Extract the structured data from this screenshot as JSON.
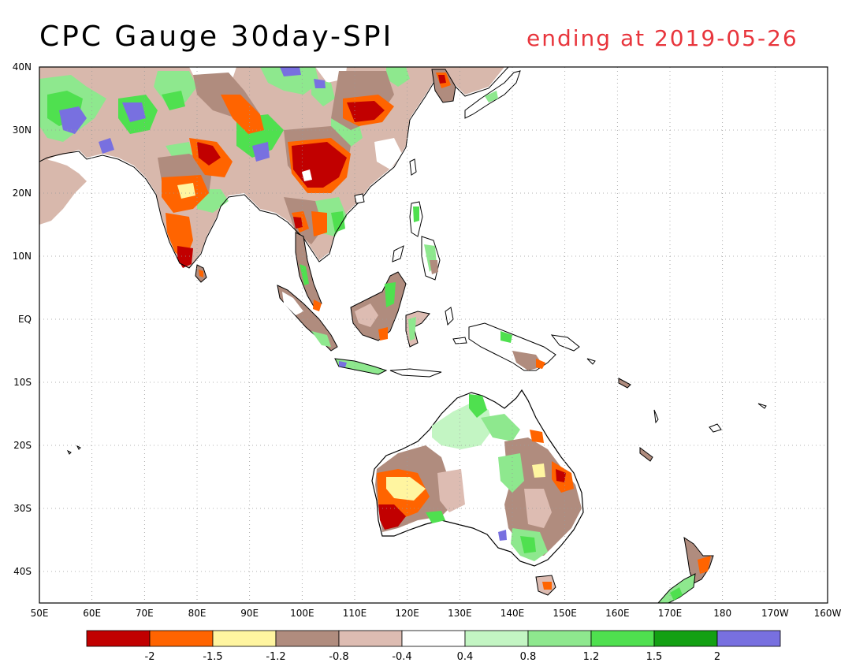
{
  "title": "CPC Gauge 30day-SPI",
  "subtitle": "ending at 2019-05-26",
  "subtitle_color": "#e8353c",
  "lon_ticks": [
    "50E",
    "60E",
    "70E",
    "80E",
    "90E",
    "100E",
    "110E",
    "120E",
    "130E",
    "140E",
    "150E",
    "160E",
    "170E",
    "180",
    "170W",
    "160W"
  ],
  "lat_ticks": [
    "40N",
    "30N",
    "20N",
    "10N",
    "EQ",
    "10S",
    "20S",
    "30S",
    "40S"
  ],
  "colorbar": {
    "colors": [
      "#c10000",
      "#ff6400",
      "#fff5a0",
      "#b08c7e",
      "#ddbcb2",
      "#ffffff",
      "#c3f5c3",
      "#8ee88e",
      "#4fe04f",
      "#13a013",
      "#7870e0"
    ],
    "labels": [
      "-2",
      "-1.5",
      "-1.2",
      "-0.8",
      "-0.4",
      "0.4",
      "0.8",
      "1.2",
      "1.5",
      "2"
    ]
  }
}
